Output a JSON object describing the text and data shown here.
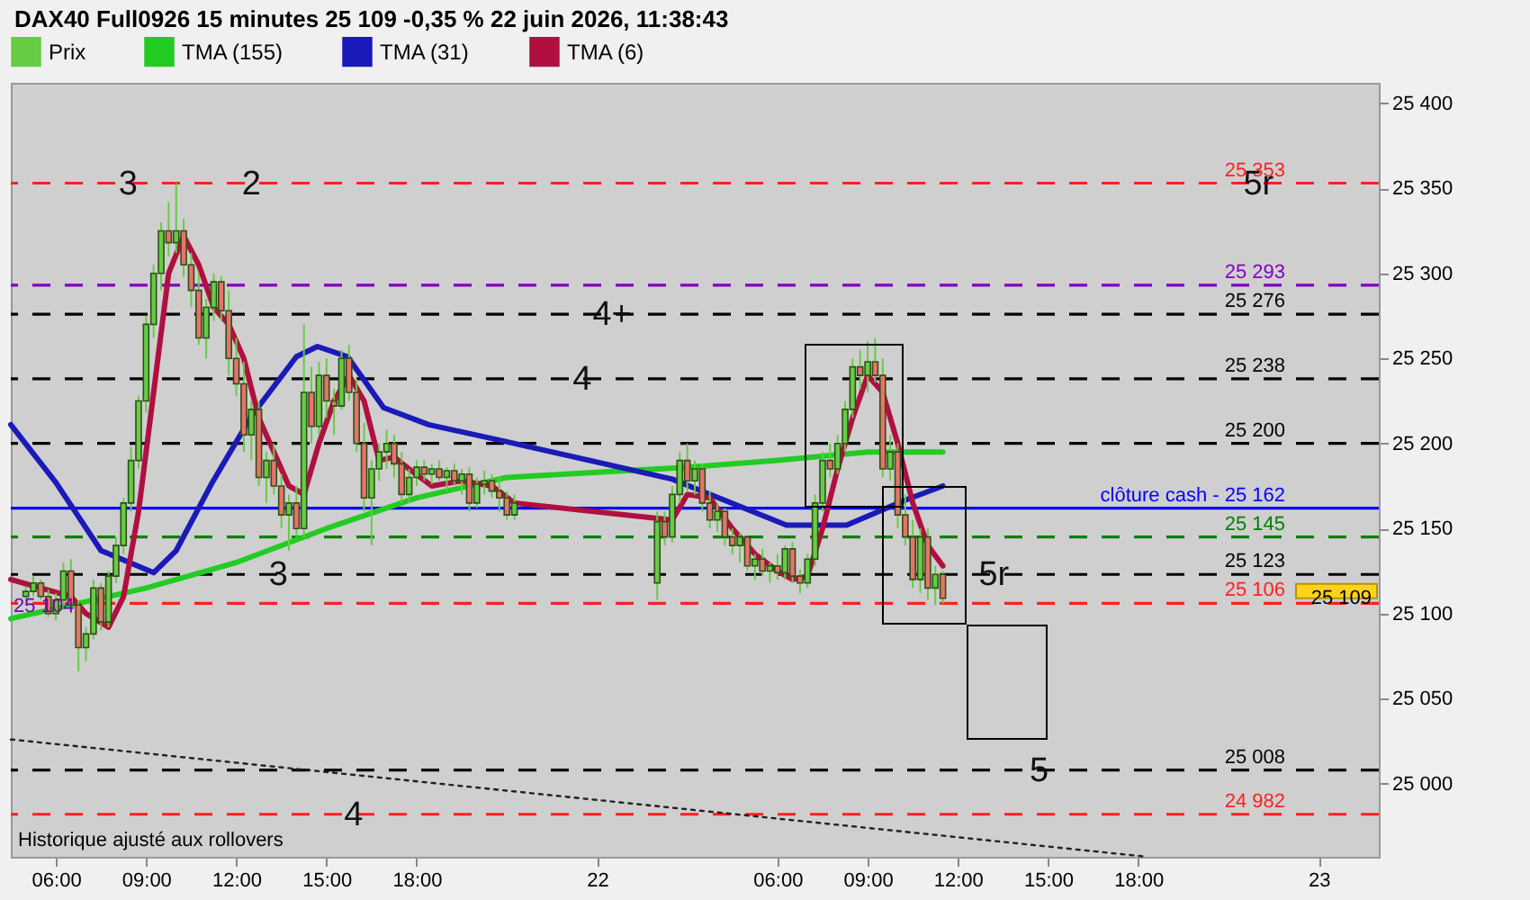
{
  "chart_data": {
    "type": "candlestick",
    "title": "DAX40 Full0926 15 minutes 25 109 -0,35 % 22 juin 2026, 11:38:43",
    "xlim": [
      "2026-06-21T04:30",
      "2026-06-23T02:00"
    ],
    "xticks": [
      {
        "value": "2026-06-21T06:00",
        "label": "06:00"
      },
      {
        "value": "2026-06-21T09:00",
        "label": "09:00"
      },
      {
        "value": "2026-06-21T12:00",
        "label": "12:00"
      },
      {
        "value": "2026-06-21T15:00",
        "label": "15:00"
      },
      {
        "value": "2026-06-21T18:00",
        "label": "18:00"
      },
      {
        "value": "2026-06-22T00:00",
        "label": "22"
      },
      {
        "value": "2026-06-22T06:00",
        "label": "06:00"
      },
      {
        "value": "2026-06-22T09:00",
        "label": "09:00"
      },
      {
        "value": "2026-06-22T12:00",
        "label": "12:00"
      },
      {
        "value": "2026-06-22T15:00",
        "label": "15:00"
      },
      {
        "value": "2026-06-22T18:00",
        "label": "18:00"
      },
      {
        "value": "2026-06-23T00:00",
        "label": "23"
      }
    ],
    "ylim": [
      24957,
      25412
    ],
    "yticks": [
      {
        "value": 25000,
        "label": "25 000"
      },
      {
        "value": 25050,
        "label": "25 050"
      },
      {
        "value": 25100,
        "label": "25 100"
      },
      {
        "value": 25150,
        "label": "25 150"
      },
      {
        "value": 25200,
        "label": "25 200"
      },
      {
        "value": 25250,
        "label": "25 250"
      },
      {
        "value": 25300,
        "label": "25 300"
      },
      {
        "value": 25350,
        "label": "25 350"
      },
      {
        "value": 25400,
        "label": "25 400"
      }
    ],
    "legend": "top left",
    "series": [
      {
        "name": "Prix",
        "type": "candlestick",
        "color": "#66cc44",
        "x": [
          "2026-06-21T05:00",
          "2026-06-21T05:15",
          "2026-06-21T05:30",
          "2026-06-21T05:45",
          "2026-06-21T06:00",
          "2026-06-21T06:15",
          "2026-06-21T06:30",
          "2026-06-21T06:45",
          "2026-06-21T07:00",
          "2026-06-21T07:15",
          "2026-06-21T07:30",
          "2026-06-21T07:45",
          "2026-06-21T08:00",
          "2026-06-21T08:15",
          "2026-06-21T08:30",
          "2026-06-21T08:45",
          "2026-06-21T09:00",
          "2026-06-21T09:15",
          "2026-06-21T09:30",
          "2026-06-21T09:45",
          "2026-06-21T10:00",
          "2026-06-21T10:15",
          "2026-06-21T10:30",
          "2026-06-21T10:45",
          "2026-06-21T11:00",
          "2026-06-21T11:15",
          "2026-06-21T11:30",
          "2026-06-21T11:45",
          "2026-06-21T12:00",
          "2026-06-21T12:15",
          "2026-06-21T12:30",
          "2026-06-21T12:45",
          "2026-06-21T13:00",
          "2026-06-21T13:15",
          "2026-06-21T13:30",
          "2026-06-21T13:45",
          "2026-06-21T14:00",
          "2026-06-21T14:15",
          "2026-06-21T14:30",
          "2026-06-21T14:45",
          "2026-06-21T15:00",
          "2026-06-21T15:15",
          "2026-06-21T15:30",
          "2026-06-21T15:45",
          "2026-06-21T16:00",
          "2026-06-21T16:15",
          "2026-06-21T16:30",
          "2026-06-21T16:45",
          "2026-06-21T17:00",
          "2026-06-21T17:15",
          "2026-06-21T17:30",
          "2026-06-21T17:45",
          "2026-06-21T18:00",
          "2026-06-21T18:15",
          "2026-06-21T18:30",
          "2026-06-21T18:45",
          "2026-06-21T19:00",
          "2026-06-21T19:15",
          "2026-06-21T19:30",
          "2026-06-21T19:45",
          "2026-06-21T20:00",
          "2026-06-21T20:15",
          "2026-06-21T20:30",
          "2026-06-21T20:45",
          "2026-06-21T21:00",
          "2026-06-21T21:15",
          "2026-06-22T02:00",
          "2026-06-22T02:15",
          "2026-06-22T02:30",
          "2026-06-22T02:45",
          "2026-06-22T03:00",
          "2026-06-22T03:15",
          "2026-06-22T03:30",
          "2026-06-22T03:45",
          "2026-06-22T04:00",
          "2026-06-22T04:15",
          "2026-06-22T04:30",
          "2026-06-22T04:45",
          "2026-06-22T05:00",
          "2026-06-22T05:15",
          "2026-06-22T05:30",
          "2026-06-22T05:45",
          "2026-06-22T06:00",
          "2026-06-22T06:15",
          "2026-06-22T06:30",
          "2026-06-22T06:45",
          "2026-06-22T07:00",
          "2026-06-22T07:15",
          "2026-06-22T07:30",
          "2026-06-22T07:45",
          "2026-06-22T08:00",
          "2026-06-22T08:15",
          "2026-06-22T08:30",
          "2026-06-22T08:45",
          "2026-06-22T09:00",
          "2026-06-22T09:15",
          "2026-06-22T09:30",
          "2026-06-22T09:45",
          "2026-06-22T10:00",
          "2026-06-22T10:15",
          "2026-06-22T10:30",
          "2026-06-22T10:45",
          "2026-06-22T11:00",
          "2026-06-22T11:15",
          "2026-06-22T11:30"
        ],
        "ohlc": [
          [
            25110,
            25116,
            25105,
            25113
          ],
          [
            25113,
            25122,
            25110,
            25118
          ],
          [
            25118,
            25120,
            25108,
            25110
          ],
          [
            25110,
            25114,
            25098,
            25100
          ],
          [
            25100,
            25112,
            25096,
            25108
          ],
          [
            25108,
            25130,
            25105,
            25125
          ],
          [
            25125,
            25132,
            25100,
            25105
          ],
          [
            25105,
            25108,
            25066,
            25080
          ],
          [
            25080,
            25092,
            25072,
            25088
          ],
          [
            25088,
            25120,
            25085,
            25115
          ],
          [
            25115,
            25118,
            25090,
            25095
          ],
          [
            25095,
            25125,
            25092,
            25122
          ],
          [
            25122,
            25145,
            25118,
            25140
          ],
          [
            25140,
            25168,
            25135,
            25165
          ],
          [
            25165,
            25198,
            25160,
            25190
          ],
          [
            25190,
            25228,
            25185,
            25225
          ],
          [
            25225,
            25275,
            25218,
            25270
          ],
          [
            25270,
            25305,
            25262,
            25300
          ],
          [
            25300,
            25330,
            25290,
            25325
          ],
          [
            25325,
            25342,
            25310,
            25318
          ],
          [
            25318,
            25353,
            25312,
            25325
          ],
          [
            25325,
            25332,
            25298,
            25305
          ],
          [
            25305,
            25312,
            25280,
            25290
          ],
          [
            25290,
            25300,
            25258,
            25262
          ],
          [
            25262,
            25285,
            25250,
            25280
          ],
          [
            25280,
            25300,
            25272,
            25295
          ],
          [
            25295,
            25298,
            25272,
            25278
          ],
          [
            25278,
            25290,
            25240,
            25250
          ],
          [
            25250,
            25262,
            25228,
            25235
          ],
          [
            25235,
            25248,
            25195,
            25205
          ],
          [
            25205,
            25225,
            25190,
            25220
          ],
          [
            25220,
            25225,
            25175,
            25180
          ],
          [
            25180,
            25195,
            25165,
            25190
          ],
          [
            25190,
            25200,
            25170,
            25175
          ],
          [
            25175,
            25182,
            25150,
            25158
          ],
          [
            25158,
            25170,
            25137,
            25165
          ],
          [
            25165,
            25175,
            25145,
            25150
          ],
          [
            25150,
            25270,
            25145,
            25230
          ],
          [
            25230,
            25245,
            25200,
            25210
          ],
          [
            25210,
            25248,
            25205,
            25240
          ],
          [
            25240,
            25250,
            25215,
            25225
          ],
          [
            25225,
            25232,
            25205,
            25222
          ],
          [
            25222,
            25255,
            25220,
            25250
          ],
          [
            25250,
            25258,
            25225,
            25230
          ],
          [
            25230,
            25238,
            25195,
            25200
          ],
          [
            25200,
            25212,
            25160,
            25168
          ],
          [
            25168,
            25190,
            25140,
            25185
          ],
          [
            25185,
            25200,
            25178,
            25195
          ],
          [
            25195,
            25208,
            25185,
            25200
          ],
          [
            25200,
            25205,
            25180,
            25188
          ],
          [
            25188,
            25195,
            25165,
            25170
          ],
          [
            25170,
            25185,
            25165,
            25180
          ],
          [
            25180,
            25190,
            25175,
            25186
          ],
          [
            25186,
            25190,
            25178,
            25182
          ],
          [
            25182,
            25188,
            25176,
            25185
          ],
          [
            25185,
            25190,
            25178,
            25180
          ],
          [
            25180,
            25186,
            25172,
            25184
          ],
          [
            25184,
            25188,
            25176,
            25178
          ],
          [
            25178,
            25185,
            25170,
            25182
          ],
          [
            25182,
            25186,
            25160,
            25165
          ],
          [
            25165,
            25180,
            25162,
            25176
          ],
          [
            25176,
            25184,
            25170,
            25178
          ],
          [
            25178,
            25182,
            25168,
            25172
          ],
          [
            25172,
            25180,
            25160,
            25168
          ],
          [
            25168,
            25172,
            25155,
            25158
          ],
          [
            25158,
            25170,
            25155,
            25165
          ],
          [
            25118,
            25160,
            25108,
            25154
          ],
          [
            25154,
            25160,
            25140,
            25145
          ],
          [
            25145,
            25175,
            25142,
            25170
          ],
          [
            25170,
            25195,
            25165,
            25190
          ],
          [
            25190,
            25200,
            25172,
            25178
          ],
          [
            25178,
            25190,
            25170,
            25185
          ],
          [
            25185,
            25188,
            25160,
            25165
          ],
          [
            25165,
            25172,
            25150,
            25155
          ],
          [
            25155,
            25165,
            25148,
            25160
          ],
          [
            25160,
            25162,
            25140,
            25145
          ],
          [
            25145,
            25150,
            25135,
            25140
          ],
          [
            25140,
            25148,
            25130,
            25145
          ],
          [
            25145,
            25146,
            25125,
            25128
          ],
          [
            25128,
            25135,
            25120,
            25132
          ],
          [
            25132,
            25138,
            25122,
            25125
          ],
          [
            25125,
            25130,
            25118,
            25128
          ],
          [
            25128,
            25135,
            25120,
            25124
          ],
          [
            25124,
            25140,
            25120,
            25138
          ],
          [
            25138,
            25142,
            25118,
            25122
          ],
          [
            25122,
            25126,
            25112,
            25118
          ],
          [
            25118,
            25135,
            25115,
            25132
          ],
          [
            25132,
            25170,
            25128,
            25165
          ],
          [
            25165,
            25195,
            25160,
            25190
          ],
          [
            25190,
            25200,
            25180,
            25185
          ],
          [
            25185,
            25205,
            25182,
            25200
          ],
          [
            25200,
            25225,
            25195,
            25220
          ],
          [
            25220,
            25250,
            25215,
            25245
          ],
          [
            25245,
            25255,
            25232,
            25240
          ],
          [
            25240,
            25260,
            25230,
            25248
          ],
          [
            25248,
            25262,
            25236,
            25240
          ],
          [
            25240,
            25250,
            25180,
            25185
          ],
          [
            25185,
            25205,
            25178,
            25195
          ],
          [
            25195,
            25200,
            25150,
            25158
          ],
          [
            25158,
            25170,
            25140,
            25145
          ],
          [
            25145,
            25155,
            25115,
            25120
          ],
          [
            25120,
            25150,
            25112,
            25145
          ],
          [
            25145,
            25150,
            25108,
            25115
          ],
          [
            25115,
            25128,
            25105,
            25123
          ],
          [
            25123,
            25125,
            25106,
            25109
          ]
        ],
        "colors": [
          "#66cc44",
          "#66cc44",
          "#e8736b",
          "#e8736b",
          "#66cc44",
          "#66cc44",
          "#e8736b",
          "#e8736b",
          "#66cc44",
          "#66cc44",
          "#e8736b",
          "#66cc44",
          "#66cc44",
          "#66cc44",
          "#66cc44",
          "#66cc44",
          "#66cc44",
          "#66cc44",
          "#66cc44",
          "#e8736b",
          "#66cc44",
          "#e8736b",
          "#e8736b",
          "#e8736b",
          "#66cc44",
          "#66cc44",
          "#e8736b",
          "#e8736b",
          "#e8736b",
          "#e8736b",
          "#66cc44",
          "#e8736b",
          "#66cc44",
          "#e8736b",
          "#e8736b",
          "#66cc44",
          "#e8736b",
          "#66cc44",
          "#e8736b",
          "#66cc44",
          "#e8736b",
          "#e8736b",
          "#66cc44",
          "#e8736b",
          "#e8736b",
          "#e8736b",
          "#66cc44",
          "#66cc44",
          "#66cc44",
          "#e8736b",
          "#e8736b",
          "#66cc44",
          "#66cc44",
          "#e8736b",
          "#66cc44",
          "#e8736b",
          "#66cc44",
          "#e8736b",
          "#66cc44",
          "#e8736b",
          "#66cc44",
          "#66cc44",
          "#e8736b",
          "#e8736b",
          "#e8736b",
          "#66cc44",
          "#66cc44",
          "#e8736b",
          "#66cc44",
          "#66cc44",
          "#e8736b",
          "#66cc44",
          "#e8736b",
          "#e8736b",
          "#66cc44",
          "#e8736b",
          "#e8736b",
          "#66cc44",
          "#e8736b",
          "#66cc44",
          "#e8736b",
          "#66cc44",
          "#e8736b",
          "#66cc44",
          "#e8736b",
          "#e8736b",
          "#66cc44",
          "#66cc44",
          "#66cc44",
          "#e8736b",
          "#66cc44",
          "#66cc44",
          "#66cc44",
          "#e8736b",
          "#66cc44",
          "#e8736b",
          "#e8736b",
          "#66cc44",
          "#e8736b",
          "#e8736b",
          "#e8736b",
          "#66cc44",
          "#e8736b",
          "#66cc44",
          "#e8736b"
        ]
      },
      {
        "name": "TMA (155)",
        "type": "line",
        "color": "#22cc22",
        "x": [
          "2026-06-21T04:30",
          "2026-06-21T09:00",
          "2026-06-21T12:00",
          "2026-06-21T15:00",
          "2026-06-21T18:00",
          "2026-06-21T21:00",
          "2026-06-22T00:00",
          "2026-06-22T03:00",
          "2026-06-22T06:00",
          "2026-06-22T09:00",
          "2026-06-22T11:30"
        ],
        "values": [
          25097,
          25115,
          25130,
          25150,
          25168,
          25180,
          25183,
          25186,
          25190,
          25195,
          25195
        ]
      },
      {
        "name": "TMA (31)",
        "type": "line",
        "color": "#1a1ab8",
        "x": [
          "2026-06-21T04:30",
          "2026-06-21T06:00",
          "2026-06-21T07:30",
          "2026-06-21T09:15",
          "2026-06-21T10:00",
          "2026-06-21T11:12",
          "2026-06-21T12:30",
          "2026-06-21T14:00",
          "2026-06-21T14:42",
          "2026-06-21T15:42",
          "2026-06-21T16:54",
          "2026-06-21T18:24",
          "2026-06-21T21:00",
          "2026-06-22T02:30",
          "2026-06-22T06:18",
          "2026-06-22T08:18",
          "2026-06-22T10:18",
          "2026-06-22T11:30"
        ],
        "values": [
          25211,
          25177,
          25137,
          25124,
          25137,
          25177,
          25216,
          25251,
          25257,
          25251,
          25221,
          25211,
          25201,
          25179,
          25152,
          25152,
          25167,
          25175
        ]
      },
      {
        "name": "TMA (6)",
        "type": "line",
        "color": "#b0103f",
        "x": [
          "2026-06-21T04:30",
          "2026-06-21T05:30",
          "2026-06-21T06:30",
          "2026-06-21T07:00",
          "2026-06-21T07:45",
          "2026-06-21T08:15",
          "2026-06-21T08:45",
          "2026-06-21T09:15",
          "2026-06-21T09:45",
          "2026-06-21T10:15",
          "2026-06-21T10:45",
          "2026-06-21T11:15",
          "2026-06-21T11:45",
          "2026-06-21T12:15",
          "2026-06-21T12:45",
          "2026-06-21T13:15",
          "2026-06-21T13:45",
          "2026-06-21T14:15",
          "2026-06-21T14:45",
          "2026-06-21T15:15",
          "2026-06-21T15:45",
          "2026-06-21T16:15",
          "2026-06-21T16:45",
          "2026-06-21T17:15",
          "2026-06-21T17:45",
          "2026-06-21T18:30",
          "2026-06-21T19:30",
          "2026-06-21T20:30",
          "2026-06-21T21:15",
          "2026-06-22T02:30",
          "2026-06-22T03:00",
          "2026-06-22T03:45",
          "2026-06-22T04:30",
          "2026-06-22T05:15",
          "2026-06-22T06:00",
          "2026-06-22T06:30",
          "2026-06-22T07:00",
          "2026-06-22T07:30",
          "2026-06-22T08:00",
          "2026-06-22T08:30",
          "2026-06-22T09:00",
          "2026-06-22T09:30",
          "2026-06-22T10:00",
          "2026-06-22T10:30",
          "2026-06-22T11:00",
          "2026-06-22T11:30"
        ],
        "values": [
          25120,
          25115,
          25110,
          25100,
          25092,
          25110,
          25160,
          25230,
          25300,
          25322,
          25305,
          25280,
          25270,
          25250,
          25215,
          25195,
          25175,
          25170,
          25200,
          25225,
          25240,
          25225,
          25190,
          25192,
          25185,
          25175,
          25178,
          25175,
          25165,
          25155,
          25170,
          25168,
          25150,
          25135,
          25125,
          25120,
          25122,
          25150,
          25185,
          25215,
          25240,
          25230,
          25200,
          25165,
          25140,
          25128
        ]
      },
      {
        "type": "line",
        "color": "#222222",
        "line_style": "dotted",
        "x": [
          "2026-06-21T04:30",
          "2026-06-22T18:18"
        ],
        "values": [
          25026,
          24957
        ]
      }
    ],
    "ref_lines": [
      {
        "axis": "y",
        "value": 25353,
        "label": "25 353",
        "color": "#ff2020",
        "line_style": "dashed"
      },
      {
        "axis": "y",
        "value": 25293,
        "label": "25 293",
        "color": "#8000c0",
        "line_style": "dashed"
      },
      {
        "axis": "y",
        "value": 25276,
        "label": "25 276",
        "color": "#000000",
        "line_style": "dashed"
      },
      {
        "axis": "y",
        "value": 25238,
        "label": "25 238",
        "color": "#000000",
        "line_style": "dashed"
      },
      {
        "axis": "y",
        "value": 25200,
        "label": "25 200",
        "color": "#000000",
        "line_style": "dashed"
      },
      {
        "axis": "y",
        "value": 25162,
        "label": "clôture cash -  25 162",
        "color": "#0000ff",
        "line_style": "solid"
      },
      {
        "axis": "y",
        "value": 25145,
        "label": "25 145",
        "color": "#008000",
        "line_style": "dashed"
      },
      {
        "axis": "y",
        "value": 25123,
        "label": "25 123",
        "color": "#000000",
        "line_style": "dashed"
      },
      {
        "axis": "y",
        "value": 25106,
        "label": "25 106",
        "color": "#ff2020",
        "line_style": "dashed"
      },
      {
        "axis": "y",
        "value": 25008,
        "label": "25 008",
        "color": "#000000",
        "line_style": "dashed"
      },
      {
        "axis": "y",
        "value": 24982,
        "label": "24 982",
        "color": "#ff2020",
        "line_style": "dashed"
      }
    ],
    "annotations": [
      {
        "text": "3",
        "x": "2026-06-21T08:24",
        "y": 25353
      },
      {
        "text": "2",
        "x": "2026-06-21T12:30",
        "y": 25353
      },
      {
        "text": "4+",
        "x": "2026-06-22T00:30",
        "y": 25276
      },
      {
        "text": "4",
        "x": "2026-06-21T23:30",
        "y": 25238
      },
      {
        "text": "3",
        "x": "2026-06-21T13:24",
        "y": 25123
      },
      {
        "text": "5r",
        "x": "2026-06-22T22:00",
        "y": 25353
      },
      {
        "text": "5r",
        "x": "2026-06-22T13:12",
        "y": 25123
      },
      {
        "text": "5",
        "x": "2026-06-22T14:42",
        "y": 25008
      },
      {
        "text": "4",
        "x": "2026-06-21T15:54",
        "y": 24982
      },
      {
        "text": "25 104",
        "x": "2026-06-21T05:36",
        "y": 25104
      },
      {
        "text": "25 109",
        "y": 25109
      },
      "Historique ajusté aux rollovers"
    ]
  }
}
